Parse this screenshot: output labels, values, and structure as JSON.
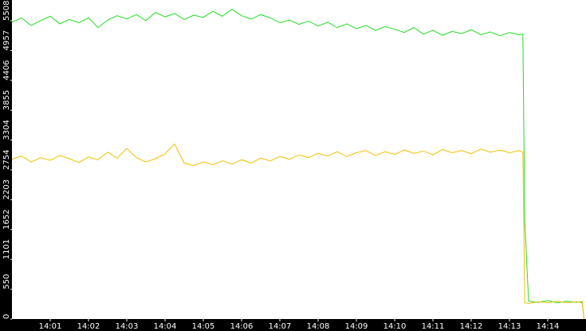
{
  "chart_data": {
    "type": "line",
    "x": [
      0,
      0.25,
      0.5,
      0.75,
      1,
      1.25,
      1.5,
      1.75,
      2,
      2.25,
      2.5,
      2.75,
      3,
      3.25,
      3.5,
      3.75,
      4,
      4.25,
      4.5,
      4.75,
      5,
      5.25,
      5.5,
      5.75,
      6,
      6.25,
      6.5,
      6.75,
      7,
      7.25,
      7.5,
      7.75,
      8,
      8.25,
      8.5,
      8.75,
      9,
      9.25,
      9.5,
      9.75,
      10,
      10.25,
      10.5,
      10.75,
      11,
      11.25,
      11.5,
      11.75,
      12,
      12.25,
      12.5,
      12.75,
      13,
      13.25,
      13.35,
      13.4,
      13.5,
      13.75,
      14,
      14.25,
      14.5,
      14.75,
      14.9,
      14.95
    ],
    "series": [
      {
        "color": "#22dd22",
        "values": [
          5480,
          5560,
          5420,
          5510,
          5590,
          5450,
          5530,
          5470,
          5560,
          5380,
          5520,
          5600,
          5540,
          5620,
          5510,
          5660,
          5580,
          5640,
          5530,
          5610,
          5570,
          5680,
          5590,
          5720,
          5600,
          5540,
          5620,
          5560,
          5470,
          5520,
          5440,
          5500,
          5410,
          5480,
          5380,
          5450,
          5360,
          5420,
          5330,
          5400,
          5350,
          5290,
          5380,
          5260,
          5330,
          5240,
          5310,
          5270,
          5340,
          5250,
          5300,
          5230,
          5290,
          5250,
          5260,
          1800,
          330,
          310,
          340,
          300,
          330,
          310,
          320,
          0
        ]
      },
      {
        "color": "#f0c000",
        "values": [
          2950,
          3010,
          2900,
          2980,
          2930,
          3020,
          2960,
          2890,
          2990,
          2940,
          3080,
          2970,
          3150,
          2980,
          2900,
          2960,
          3050,
          3230,
          2880,
          2830,
          2900,
          2850,
          2920,
          2860,
          2940,
          2880,
          2970,
          2920,
          3000,
          2950,
          3030,
          2980,
          3060,
          3010,
          3090,
          3000,
          3070,
          3110,
          3020,
          3090,
          3040,
          3120,
          3060,
          3100,
          3030,
          3130,
          3070,
          3110,
          3050,
          3140,
          3080,
          3120,
          3070,
          3110,
          3080,
          300,
          290,
          320,
          300,
          330,
          300,
          320,
          300,
          0
        ]
      }
    ],
    "xlim": [
      0,
      15
    ],
    "xticks": [
      {
        "value": 1,
        "label": "14:01"
      },
      {
        "value": 2,
        "label": "14:02"
      },
      {
        "value": 3,
        "label": "14:03"
      },
      {
        "value": 4,
        "label": "14:04"
      },
      {
        "value": 5,
        "label": "14:05"
      },
      {
        "value": 6,
        "label": "14:06"
      },
      {
        "value": 7,
        "label": "14:07"
      },
      {
        "value": 8,
        "label": "14:08"
      },
      {
        "value": 9,
        "label": "14:09"
      },
      {
        "value": 10,
        "label": "14:10"
      },
      {
        "value": 11,
        "label": "14:11"
      },
      {
        "value": 12,
        "label": "14:12"
      },
      {
        "value": 13,
        "label": "14:13"
      },
      {
        "value": 14,
        "label": "14:14"
      }
    ],
    "ylim": [
      0,
      5890
    ],
    "yticks": [
      0,
      550,
      1101,
      1652,
      2203,
      2754,
      3304,
      3855,
      4406,
      4957,
      5508
    ]
  }
}
